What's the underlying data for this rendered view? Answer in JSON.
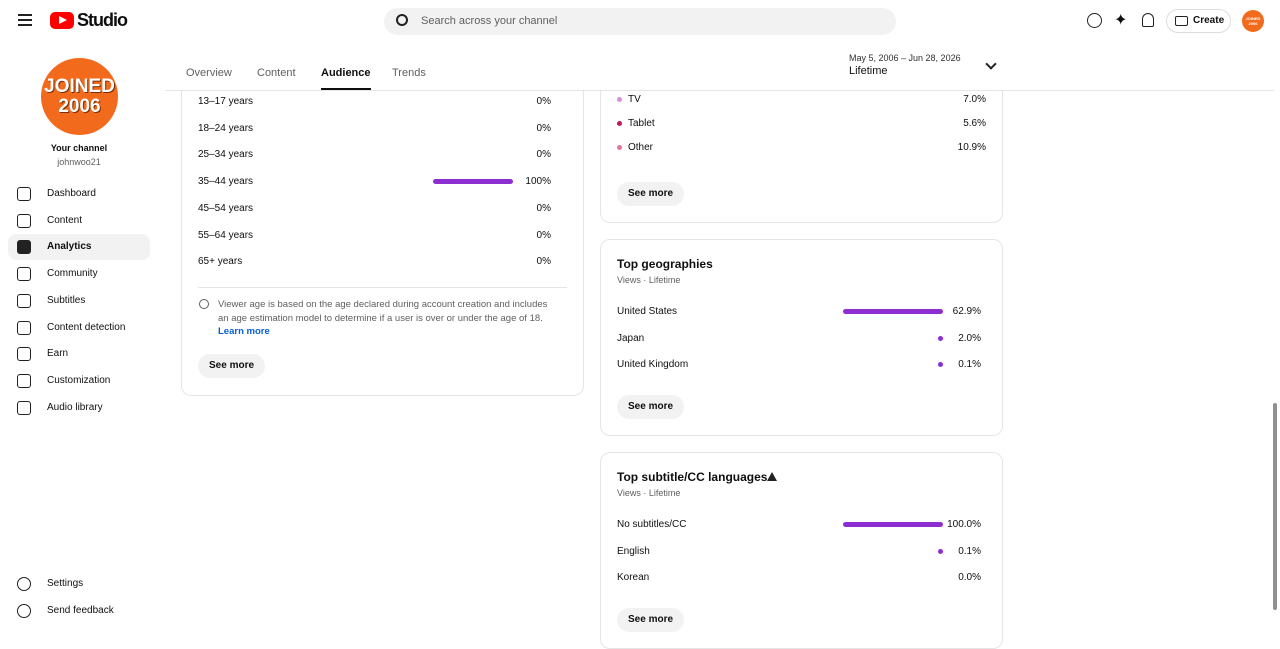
{
  "header": {
    "logo": "Studio",
    "search_placeholder": "Search across your channel",
    "create": "Create"
  },
  "channel": {
    "avatar_lines": [
      "JOINED",
      "2006"
    ],
    "title": "Your channel",
    "handle": "johnwoo21"
  },
  "nav": [
    "Dashboard",
    "Content",
    "Analytics",
    "Community",
    "Subtitles",
    "Content detection",
    "Earn",
    "Customization",
    "Audio library"
  ],
  "nav_active": 2,
  "nav_footer": [
    "Settings",
    "Send feedback"
  ],
  "tabs": [
    "Overview",
    "Content",
    "Audience",
    "Trends"
  ],
  "tab_active": 2,
  "date_range": {
    "range": "May 5, 2006 – Jun 28, 2026",
    "label": "Lifetime"
  },
  "age": {
    "rows": [
      {
        "label": "13–17 years",
        "value": 0,
        "value_label": "0%"
      },
      {
        "label": "18–24 years",
        "value": 0,
        "value_label": "0%"
      },
      {
        "label": "25–34 years",
        "value": 0,
        "value_label": "0%"
      },
      {
        "label": "35–44 years",
        "value": 100,
        "value_label": "100%"
      },
      {
        "label": "45–54 years",
        "value": 0,
        "value_label": "0%"
      },
      {
        "label": "55–64 years",
        "value": 0,
        "value_label": "0%"
      },
      {
        "label": "65+ years",
        "value": 0,
        "value_label": "0%"
      }
    ],
    "note": "Viewer age is based on the age declared during account creation and includes an age estimation model to determine if a user is over or under the age of 18.",
    "link": "Learn more",
    "button": "See more"
  },
  "devices": {
    "rows": [
      {
        "label": "TV",
        "value_label": "7.0%",
        "color": "#d98ee0"
      },
      {
        "label": "Tablet",
        "value_label": "5.6%",
        "color": "#c2185b"
      },
      {
        "label": "Other",
        "value_label": "10.9%",
        "color": "#e57399"
      }
    ],
    "button": "See more"
  },
  "geographies": {
    "title": "Top geographies",
    "subtitle": "Views · Lifetime",
    "rows": [
      {
        "label": "United States",
        "value": 62.9,
        "value_label": "62.9%"
      },
      {
        "label": "Japan",
        "value": 2.0,
        "value_label": "2.0%"
      },
      {
        "label": "United Kingdom",
        "value": 0.1,
        "value_label": "0.1%"
      }
    ],
    "button": "See more"
  },
  "subtitles": {
    "title": "Top subtitle/CC languages",
    "subtitle": "Views · Lifetime",
    "rows": [
      {
        "label": "No subtitles/CC",
        "value": 100.0,
        "value_label": "100.0%"
      },
      {
        "label": "English",
        "value": 0.1,
        "value_label": "0.1%"
      },
      {
        "label": "Korean",
        "value": 0.0,
        "value_label": "0.0%"
      }
    ],
    "button": "See more"
  }
}
